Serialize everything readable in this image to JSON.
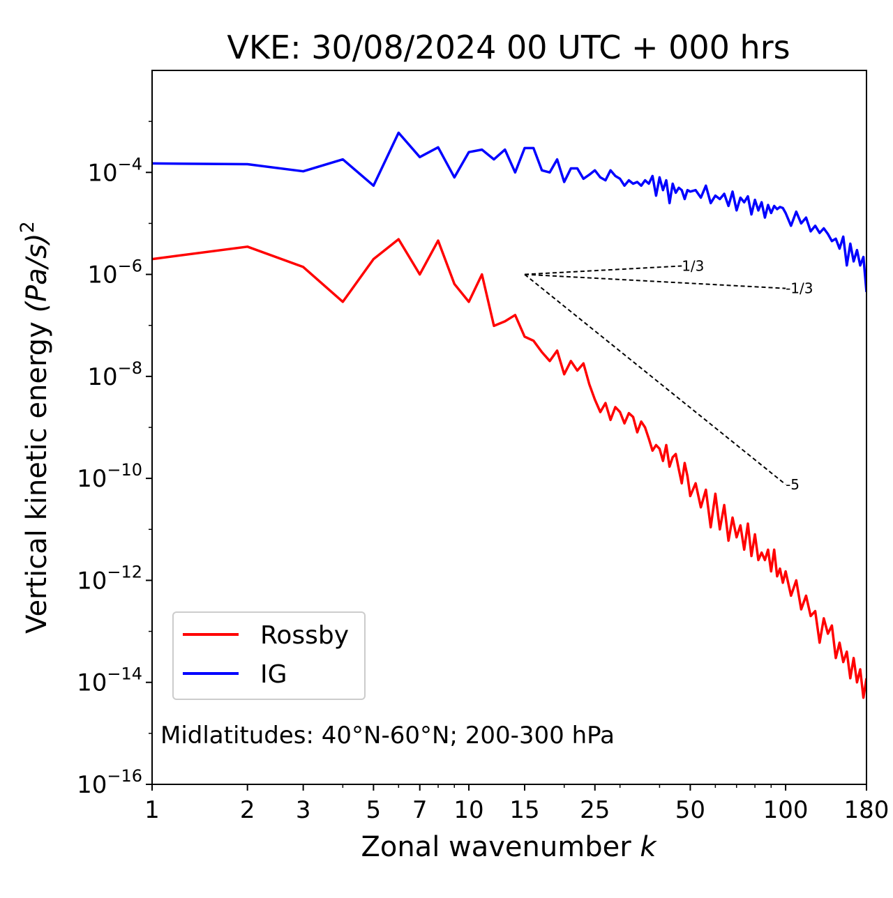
{
  "chart_data": {
    "type": "line",
    "title": "VKE: 30/08/2024 00 UTC + 000 hrs",
    "xlabel": "Zonal wavenumber",
    "xlabel_var": "k",
    "ylabel": "Vertical kinetic energy",
    "ylabel_unit": "(Pa/s)",
    "ylabel_unit_exp": "2",
    "xscale": "log",
    "yscale": "log",
    "xlim": [
      1,
      180
    ],
    "ylim": [
      1e-16,
      0.01
    ],
    "xticks": [
      1,
      2,
      3,
      5,
      7,
      10,
      15,
      25,
      50,
      100,
      180
    ],
    "xtick_labels": [
      "1",
      "2",
      "3",
      "5",
      "7",
      "10",
      "15",
      "25",
      "50",
      "100",
      "180"
    ],
    "yticks": [
      -16,
      -14,
      -12,
      -10,
      -8,
      -6,
      -4
    ],
    "ytick_base": "10",
    "ytick_exponents": [
      "−16",
      "−14",
      "−12",
      "−10",
      "−8",
      "−6",
      "−4"
    ],
    "annotation": "Midlatitudes: 40°N-60°N; 200-300 hPa",
    "legend": {
      "placement": "lower-left",
      "entries": [
        "Rossby",
        "IG"
      ]
    },
    "grid": false,
    "reference_lines": [
      {
        "label": "1/3",
        "slope": 0.3333,
        "x0": 15,
        "y0": 1e-06,
        "x1": 47
      },
      {
        "label": "-1/3",
        "slope": -0.3333,
        "x0": 15,
        "y0": 1e-06,
        "x1": 100
      },
      {
        "label": "-5",
        "slope": -5,
        "x0": 15,
        "y0": 1e-06,
        "x1": 100
      }
    ],
    "series": [
      {
        "name": "Rossby",
        "color": "#ff0000",
        "x": [
          1,
          2,
          3,
          4,
          5,
          6,
          7,
          8,
          9,
          10,
          11,
          12,
          13,
          14,
          15,
          16,
          17,
          18,
          19,
          20,
          21,
          22,
          23,
          24,
          25,
          26,
          27,
          28,
          29,
          30,
          31,
          32,
          33,
          34,
          35,
          36,
          37,
          38,
          39,
          40,
          41,
          42,
          43,
          44,
          45,
          46,
          47,
          48,
          49,
          50,
          52,
          54,
          56,
          58,
          60,
          62,
          64,
          66,
          68,
          70,
          72,
          74,
          76,
          78,
          80,
          82,
          84,
          86,
          88,
          90,
          92,
          94,
          96,
          98,
          100,
          104,
          108,
          112,
          116,
          120,
          124,
          128,
          132,
          136,
          140,
          144,
          148,
          152,
          156,
          160,
          164,
          168,
          172,
          176,
          180
        ],
        "y": [
          2e-06,
          3.5e-06,
          1.4e-06,
          2.9e-07,
          2e-06,
          4.9e-06,
          1e-06,
          4.6e-06,
          6.5e-07,
          2.9e-07,
          1e-06,
          9.8e-08,
          1.2e-07,
          1.6e-07,
          6e-08,
          5e-08,
          3e-08,
          2e-08,
          3.2e-08,
          1.1e-08,
          2e-08,
          1.3e-08,
          1.8e-08,
          7e-09,
          3.5e-09,
          2e-09,
          3e-09,
          1.4e-09,
          2.5e-09,
          2e-09,
          1.2e-09,
          1.9e-09,
          1.6e-09,
          8e-10,
          1.3e-09,
          1e-09,
          6e-10,
          3.5e-10,
          4.5e-10,
          3.8e-10,
          2.2e-10,
          4.5e-10,
          1.7e-10,
          2.6e-10,
          3e-10,
          1.5e-10,
          8e-11,
          2e-10,
          1.1e-10,
          4.5e-11,
          8e-11,
          2.7e-11,
          6e-11,
          1.1e-11,
          5e-11,
          1e-11,
          3e-11,
          6e-12,
          1.7e-11,
          7e-12,
          1.2e-11,
          4e-12,
          1.3e-11,
          3e-12,
          8e-12,
          2.5e-12,
          3.5e-12,
          2.5e-12,
          4e-12,
          1.5e-12,
          4e-12,
          1.2e-12,
          1.7e-12,
          9e-13,
          1.5e-12,
          5e-13,
          1e-12,
          2.7e-13,
          5e-13,
          2e-13,
          2.5e-13,
          6e-14,
          1.8e-13,
          9e-14,
          1.3e-13,
          3e-14,
          6e-14,
          2.5e-14,
          4e-14,
          1.2e-14,
          3e-14,
          1e-14,
          1.8e-14,
          5e-15,
          1.2e-14
        ]
      },
      {
        "name": "IG",
        "color": "#0000ff",
        "x": [
          1,
          2,
          3,
          4,
          5,
          6,
          7,
          8,
          9,
          10,
          11,
          12,
          13,
          14,
          15,
          16,
          17,
          18,
          19,
          20,
          21,
          22,
          23,
          24,
          25,
          26,
          27,
          28,
          29,
          30,
          31,
          32,
          33,
          34,
          35,
          36,
          37,
          38,
          39,
          40,
          41,
          42,
          43,
          44,
          45,
          46,
          47,
          48,
          49,
          50,
          52,
          54,
          56,
          58,
          60,
          62,
          64,
          66,
          68,
          70,
          72,
          74,
          76,
          78,
          80,
          82,
          84,
          86,
          88,
          90,
          92,
          94,
          96,
          98,
          100,
          104,
          108,
          112,
          116,
          120,
          124,
          128,
          132,
          136,
          140,
          144,
          148,
          152,
          156,
          160,
          164,
          168,
          172,
          176,
          180
        ],
        "y": [
          0.00015,
          0.000145,
          0.000105,
          0.00018,
          5.5e-05,
          0.0006,
          0.0002,
          0.00031,
          8e-05,
          0.00025,
          0.00028,
          0.00018,
          0.00028,
          0.0001,
          0.0003,
          0.0003,
          0.00011,
          0.0001,
          0.00018,
          6.5e-05,
          0.00012,
          0.00012,
          7.5e-05,
          9e-05,
          0.00011,
          8e-05,
          7e-05,
          0.00011,
          8.5e-05,
          7.5e-05,
          5.5e-05,
          7e-05,
          6e-05,
          6.5e-05,
          5.5e-05,
          7e-05,
          6e-05,
          8.5e-05,
          3.5e-05,
          8e-05,
          4.5e-05,
          7e-05,
          2.5e-05,
          6e-05,
          4e-05,
          5e-05,
          4.5e-05,
          3e-05,
          4.5e-05,
          4.2e-05,
          4.5e-05,
          3.2e-05,
          5.5e-05,
          2.5e-05,
          3.5e-05,
          3e-05,
          3.8e-05,
          2.2e-05,
          4.2e-05,
          1.8e-05,
          3.2e-05,
          2.6e-05,
          3.4e-05,
          1.5e-05,
          2.9e-05,
          1.8e-05,
          2.6e-05,
          1.3e-05,
          2.3e-05,
          1.6e-05,
          2.2e-05,
          1.9e-05,
          2.1e-05,
          2e-05,
          1.6e-05,
          9e-06,
          1.7e-05,
          1e-05,
          1.3e-05,
          7e-06,
          9e-06,
          6.5e-06,
          8e-06,
          6.2e-06,
          4.5e-06,
          5e-06,
          3.2e-06,
          5.5e-06,
          1.5e-06,
          4e-06,
          1.8e-06,
          3e-06,
          1.5e-06,
          2.2e-06,
          4.5e-07
        ]
      }
    ]
  }
}
